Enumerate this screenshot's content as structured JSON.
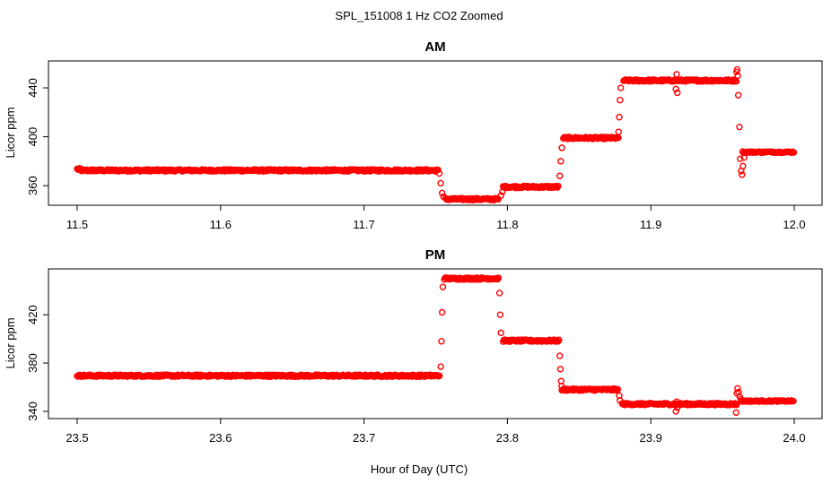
{
  "chart_data": {
    "type": "scatter",
    "title": "SPL_151008  1 Hz CO2 Zoomed",
    "xlabel": "Hour of Day (UTC)",
    "color": "#ff0000",
    "panels": [
      {
        "title": "AM",
        "ylabel": "Licor ppm",
        "xlim": [
          11.5,
          12.0
        ],
        "ylim": [
          344,
          462
        ],
        "xticks": [
          "11.5",
          "11.6",
          "11.7",
          "11.8",
          "11.9",
          "12.0"
        ],
        "yticks": [
          "360",
          "400",
          "440"
        ],
        "segments": [
          {
            "x0": 11.5,
            "x1": 11.502,
            "y": 373.5
          },
          {
            "x0": 11.502,
            "x1": 11.752,
            "y": 372.5
          },
          {
            "x0": 11.757,
            "x1": 11.794,
            "y": 349
          },
          {
            "x0": 11.797,
            "x1": 11.836,
            "y": 359
          },
          {
            "x0": 11.839,
            "x1": 11.878,
            "y": 399
          },
          {
            "x0": 11.881,
            "x1": 11.96,
            "y": 446
          }
        ],
        "settled": {
          "x0": 11.964,
          "x1": 12.0,
          "y": 387.5
        },
        "transitions": [
          [
            11.7525,
            370
          ],
          [
            11.7535,
            362
          ],
          [
            11.7545,
            354
          ],
          [
            11.7555,
            351
          ],
          [
            11.7955,
            352
          ],
          [
            11.7965,
            355
          ],
          [
            11.8365,
            368
          ],
          [
            11.8372,
            380
          ],
          [
            11.838,
            391
          ],
          [
            11.8775,
            404
          ],
          [
            11.878,
            416
          ],
          [
            11.8785,
            430
          ],
          [
            11.879,
            440
          ],
          [
            11.9175,
            439
          ],
          [
            11.918,
            451
          ],
          [
            11.9185,
            436
          ],
          [
            11.9598,
            453
          ],
          [
            11.9602,
            455
          ],
          [
            11.9606,
            450
          ],
          [
            11.961,
            434
          ],
          [
            11.9618,
            408
          ],
          [
            11.9623,
            382
          ],
          [
            11.963,
            372
          ],
          [
            11.9636,
            369
          ],
          [
            11.9642,
            376
          ],
          [
            11.965,
            383
          ]
        ]
      },
      {
        "title": "PM",
        "ylabel": "Licor ppm",
        "xlim": [
          23.5,
          24.0
        ],
        "ylim": [
          334,
          458
        ],
        "xticks": [
          "23.5",
          "23.6",
          "23.7",
          "23.8",
          "23.9",
          "24.0"
        ],
        "yticks": [
          "340",
          "380",
          "420"
        ],
        "segments": [
          {
            "x0": 23.5,
            "x1": 23.753,
            "y": 369.5
          },
          {
            "x0": 23.756,
            "x1": 23.794,
            "y": 450
          },
          {
            "x0": 23.797,
            "x1": 23.836,
            "y": 398.5
          },
          {
            "x0": 23.838,
            "x1": 23.877,
            "y": 358
          },
          {
            "x0": 23.88,
            "x1": 23.96,
            "y": 346
          }
        ],
        "settled": {
          "x0": 23.963,
          "x1": 24.0,
          "y": 348.5
        },
        "transitions": [
          [
            23.7535,
            377
          ],
          [
            23.754,
            398
          ],
          [
            23.7545,
            422
          ],
          [
            23.755,
            443
          ],
          [
            23.7945,
            438
          ],
          [
            23.795,
            420
          ],
          [
            23.7955,
            405
          ],
          [
            23.8365,
            386
          ],
          [
            23.837,
            375
          ],
          [
            23.8375,
            365
          ],
          [
            23.8378,
            361
          ],
          [
            23.878,
            353
          ],
          [
            23.8785,
            349
          ],
          [
            23.9175,
            340
          ],
          [
            23.918,
            348
          ],
          [
            23.9185,
            343
          ],
          [
            23.9595,
            339
          ],
          [
            23.96,
            355
          ],
          [
            23.9605,
            359
          ],
          [
            23.9612,
            356
          ],
          [
            23.962,
            352
          ],
          [
            23.9628,
            350
          ]
        ]
      }
    ]
  }
}
